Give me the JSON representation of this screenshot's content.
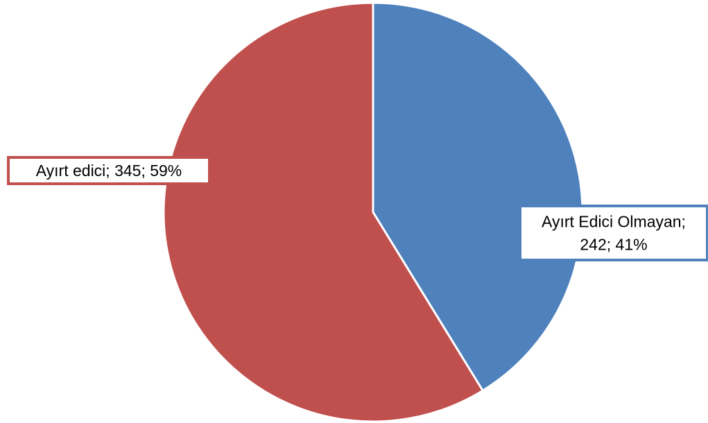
{
  "chart_data": {
    "type": "pie",
    "title": "",
    "start_angle_deg": 0,
    "direction": "clockwise",
    "slices": [
      {
        "name": "Ayırt Edici Olmayan",
        "value": 242,
        "percent": "41%",
        "color": "#4F81BD",
        "label_lines": [
          "Ayırt Edici Olmayan;",
          "242; 41%"
        ]
      },
      {
        "name": "Ayırt edici",
        "value": 345,
        "percent": "59%",
        "color": "#C0504D",
        "label_lines": [
          "Ayırt edici; 345; 59%"
        ]
      }
    ]
  }
}
